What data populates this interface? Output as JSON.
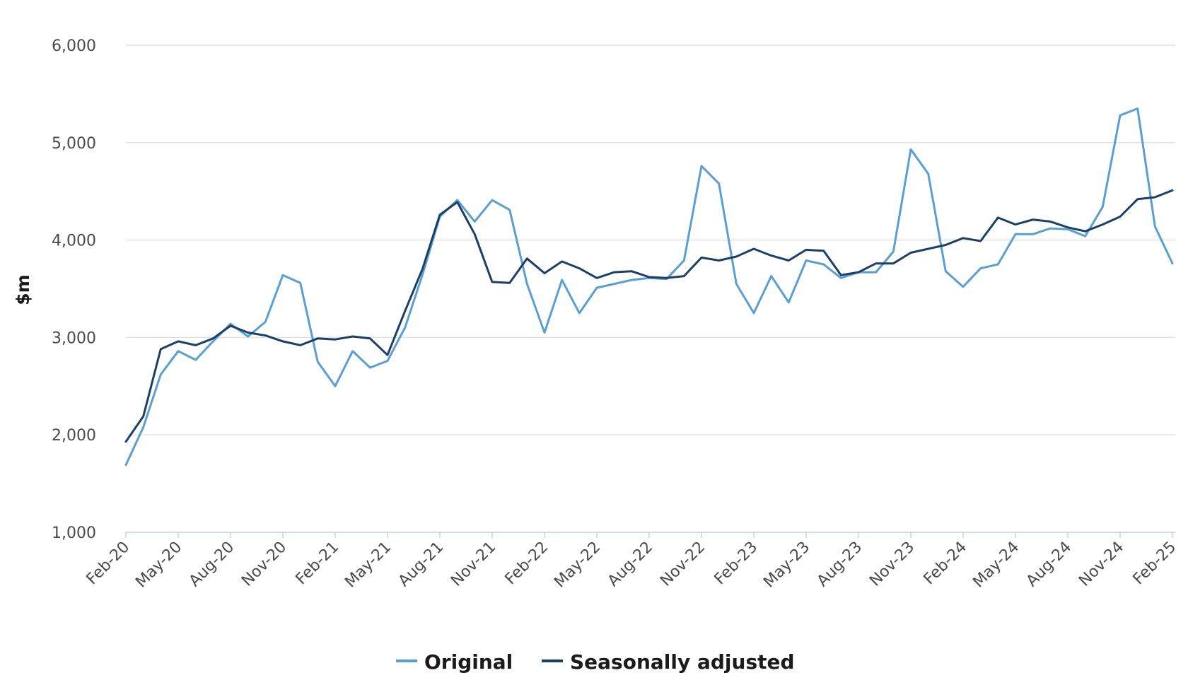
{
  "chart_data": {
    "type": "line",
    "title": "",
    "xlabel": "",
    "ylabel": "$m",
    "ylim": [
      1000,
      6000
    ],
    "yticks": [
      1000,
      2000,
      3000,
      4000,
      5000,
      6000
    ],
    "ytick_labels": [
      "1,000",
      "2,000",
      "3,000",
      "4,000",
      "5,000",
      "6,000"
    ],
    "x": [
      "Feb-20",
      "Mar-20",
      "Apr-20",
      "May-20",
      "Jun-20",
      "Jul-20",
      "Aug-20",
      "Sep-20",
      "Oct-20",
      "Nov-20",
      "Dec-20",
      "Jan-21",
      "Feb-21",
      "Mar-21",
      "Apr-21",
      "May-21",
      "Jun-21",
      "Jul-21",
      "Aug-21",
      "Sep-21",
      "Oct-21",
      "Nov-21",
      "Dec-21",
      "Jan-22",
      "Feb-22",
      "Mar-22",
      "Apr-22",
      "May-22",
      "Jun-22",
      "Jul-22",
      "Aug-22",
      "Sep-22",
      "Oct-22",
      "Nov-22",
      "Dec-22",
      "Jan-23",
      "Feb-23",
      "Mar-23",
      "Apr-23",
      "May-23",
      "Jun-23",
      "Jul-23",
      "Aug-23",
      "Sep-23",
      "Oct-23",
      "Nov-23",
      "Dec-23",
      "Jan-24",
      "Feb-24",
      "Mar-24",
      "Apr-24",
      "May-24",
      "Jun-24",
      "Jul-24",
      "Aug-24",
      "Sep-24",
      "Oct-24",
      "Nov-24",
      "Dec-24",
      "Jan-25",
      "Feb-25"
    ],
    "xtick_labels": [
      "Feb-20",
      "May-20",
      "Aug-20",
      "Nov-20",
      "Feb-21",
      "May-21",
      "Aug-21",
      "Nov-21",
      "Feb-22",
      "May-22",
      "Aug-22",
      "Nov-22",
      "Feb-23",
      "May-23",
      "Aug-23",
      "Nov-23",
      "Feb-24",
      "May-24",
      "Aug-24",
      "Nov-24",
      "Feb-25"
    ],
    "legend_position": "bottom-center",
    "grid": true,
    "series": [
      {
        "name": "Original",
        "color": "#5b9fd2",
        "values": [
          1690,
          2080,
          2620,
          2860,
          2770,
          2960,
          3140,
          3010,
          3160,
          3640,
          3560,
          2750,
          2500,
          2860,
          2690,
          2760,
          3100,
          3640,
          4240,
          4410,
          4190,
          4410,
          4310,
          3550,
          3050,
          3590,
          3250,
          3510,
          3550,
          3590,
          3610,
          3600,
          3790,
          4760,
          4580,
          3550,
          3250,
          3630,
          3360,
          3790,
          3750,
          3610,
          3670,
          3670,
          3880,
          4930,
          4680,
          3680,
          3520,
          3710,
          3750,
          4060,
          4060,
          4120,
          4110,
          4040,
          4340,
          5280,
          5350,
          4140,
          3760
        ]
      },
      {
        "name": "Seasonally adjusted",
        "color": "#1c3f66",
        "values": [
          1930,
          2190,
          2880,
          2960,
          2920,
          2990,
          3120,
          3050,
          3020,
          2960,
          2920,
          2990,
          2980,
          3010,
          2990,
          2820,
          3270,
          3700,
          4260,
          4390,
          4060,
          3570,
          3560,
          3810,
          3660,
          3780,
          3710,
          3610,
          3670,
          3680,
          3620,
          3610,
          3630,
          3820,
          3790,
          3830,
          3910,
          3840,
          3790,
          3900,
          3890,
          3640,
          3670,
          3760,
          3760,
          3870,
          3910,
          3950,
          4020,
          3990,
          4230,
          4160,
          4210,
          4190,
          4130,
          4090,
          4160,
          4240,
          4420,
          4440,
          4510
        ]
      }
    ]
  }
}
